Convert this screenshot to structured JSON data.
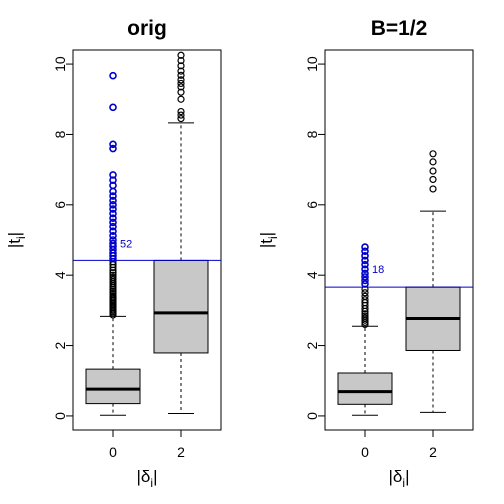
{
  "chart_data": [
    {
      "type": "boxplot",
      "title": "orig",
      "xlabel": "|δ",
      "xlabel_sub": "i",
      "xlabel_close": "|",
      "ylabel": "|t",
      "ylabel_sub": "i",
      "ylabel_close": "|",
      "ylim": [
        0,
        10.4
      ],
      "yticks": [
        "0",
        "2",
        "4",
        "6",
        "8",
        "10"
      ],
      "categories": [
        "0",
        "2"
      ],
      "box_fill": "#c8c8c8",
      "outlier_color_default": "#000000",
      "highlight_color": "#0000cc",
      "threshold": 4.42,
      "annotation": {
        "text": "52",
        "x": "0",
        "y": 4.9
      },
      "boxes": [
        {
          "category": "0",
          "whisker_low": 0.02,
          "q1": 0.35,
          "median": 0.76,
          "q3": 1.33,
          "whisker_high": 2.83,
          "outliers": [
            {
              "value": 2.87
            },
            {
              "value": 2.92
            },
            {
              "value": 2.96
            },
            {
              "value": 3.0
            },
            {
              "value": 3.04
            },
            {
              "value": 3.08
            },
            {
              "value": 3.12
            },
            {
              "value": 3.16
            },
            {
              "value": 3.2
            },
            {
              "value": 3.24
            },
            {
              "value": 3.28
            },
            {
              "value": 3.32
            },
            {
              "value": 3.36
            },
            {
              "value": 3.4
            },
            {
              "value": 3.45
            },
            {
              "value": 3.5
            },
            {
              "value": 3.55
            },
            {
              "value": 3.6
            },
            {
              "value": 3.65
            },
            {
              "value": 3.7
            },
            {
              "value": 3.76
            },
            {
              "value": 3.82
            },
            {
              "value": 3.88
            },
            {
              "value": 3.94
            },
            {
              "value": 4.0
            },
            {
              "value": 4.07
            },
            {
              "value": 4.14
            },
            {
              "value": 4.22
            },
            {
              "value": 4.3
            },
            {
              "value": 4.38
            },
            {
              "value": 4.47,
              "highlight": true
            },
            {
              "value": 4.55,
              "highlight": true
            },
            {
              "value": 4.63,
              "highlight": true
            },
            {
              "value": 4.72,
              "highlight": true
            },
            {
              "value": 4.82,
              "highlight": true
            },
            {
              "value": 4.9,
              "highlight": true
            },
            {
              "value": 5.0,
              "highlight": true
            },
            {
              "value": 5.12,
              "highlight": true
            },
            {
              "value": 5.25,
              "highlight": true
            },
            {
              "value": 5.38,
              "highlight": true
            },
            {
              "value": 5.5,
              "highlight": true
            },
            {
              "value": 5.62,
              "highlight": true
            },
            {
              "value": 5.75,
              "highlight": true
            },
            {
              "value": 5.88,
              "highlight": true
            },
            {
              "value": 6.0,
              "highlight": true
            },
            {
              "value": 6.12,
              "highlight": true
            },
            {
              "value": 6.25,
              "highlight": true
            },
            {
              "value": 6.38,
              "highlight": true
            },
            {
              "value": 6.55,
              "highlight": true
            },
            {
              "value": 6.7,
              "highlight": true
            },
            {
              "value": 6.85,
              "highlight": true
            },
            {
              "value": 7.6,
              "highlight": true
            },
            {
              "value": 7.72,
              "highlight": true
            },
            {
              "value": 8.77,
              "highlight": true
            },
            {
              "value": 9.67,
              "highlight": true
            }
          ]
        },
        {
          "category": "2",
          "whisker_low": 0.07,
          "q1": 1.79,
          "median": 2.93,
          "q3": 4.42,
          "whisker_high": 8.33,
          "outliers": [
            {
              "value": 8.45
            },
            {
              "value": 8.55
            },
            {
              "value": 8.65
            },
            {
              "value": 9.0
            },
            {
              "value": 9.2
            },
            {
              "value": 9.35
            },
            {
              "value": 9.45
            },
            {
              "value": 9.55
            },
            {
              "value": 9.68
            },
            {
              "value": 9.8
            },
            {
              "value": 9.95
            },
            {
              "value": 10.1
            },
            {
              "value": 10.25
            }
          ]
        }
      ]
    },
    {
      "type": "boxplot",
      "title": "B=1/2",
      "xlabel": "|δ",
      "xlabel_sub": "i",
      "xlabel_close": "|",
      "ylabel": "|t",
      "ylabel_sub": "i",
      "ylabel_close": "|",
      "ylim": [
        0,
        10.4
      ],
      "yticks": [
        "0",
        "2",
        "4",
        "6",
        "8",
        "10"
      ],
      "categories": [
        "0",
        "2"
      ],
      "box_fill": "#c8c8c8",
      "outlier_color_default": "#000000",
      "highlight_color": "#0000cc",
      "threshold": 3.66,
      "annotation": {
        "text": "18",
        "x": "0",
        "y": 4.17
      },
      "boxes": [
        {
          "category": "0",
          "whisker_low": 0.02,
          "q1": 0.33,
          "median": 0.69,
          "q3": 1.22,
          "whisker_high": 2.55,
          "outliers": [
            {
              "value": 2.6
            },
            {
              "value": 2.66
            },
            {
              "value": 2.72
            },
            {
              "value": 2.78
            },
            {
              "value": 2.84
            },
            {
              "value": 2.9
            },
            {
              "value": 2.97
            },
            {
              "value": 3.05
            },
            {
              "value": 3.14
            },
            {
              "value": 3.22
            },
            {
              "value": 3.3
            },
            {
              "value": 3.4
            },
            {
              "value": 3.5
            },
            {
              "value": 3.6
            },
            {
              "value": 3.75,
              "highlight": true
            },
            {
              "value": 3.85,
              "highlight": true
            },
            {
              "value": 3.95,
              "highlight": true
            },
            {
              "value": 4.05,
              "highlight": true
            },
            {
              "value": 4.17,
              "highlight": true
            },
            {
              "value": 4.3,
              "highlight": true
            },
            {
              "value": 4.42,
              "highlight": true
            },
            {
              "value": 4.55,
              "highlight": true
            },
            {
              "value": 4.68,
              "highlight": true
            },
            {
              "value": 4.8,
              "highlight": true
            }
          ]
        },
        {
          "category": "2",
          "whisker_low": 0.1,
          "q1": 1.86,
          "median": 2.77,
          "q3": 3.66,
          "whisker_high": 5.82,
          "outliers": [
            {
              "value": 6.45
            },
            {
              "value": 6.72
            },
            {
              "value": 6.96
            },
            {
              "value": 7.22
            },
            {
              "value": 7.45
            }
          ]
        }
      ]
    }
  ]
}
